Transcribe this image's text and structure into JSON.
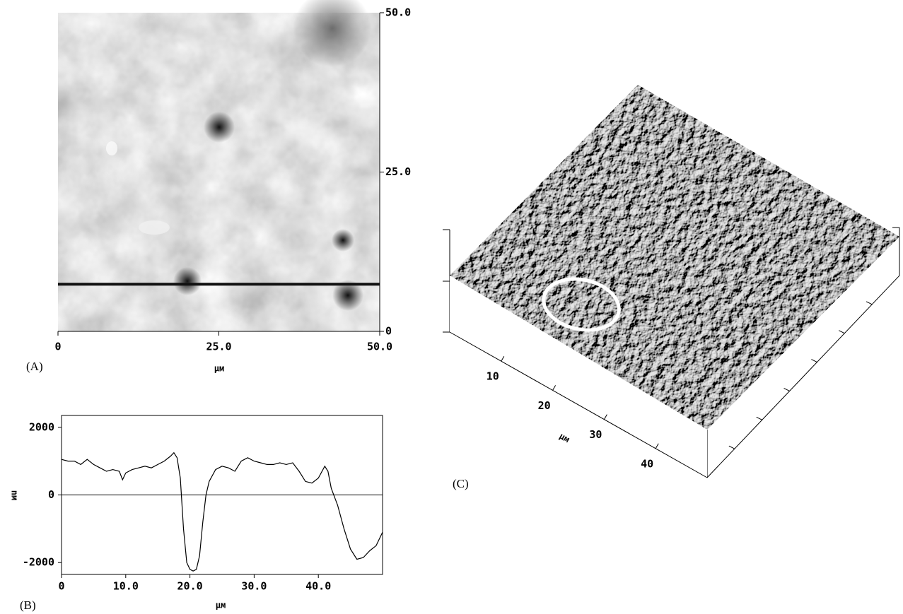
{
  "chart_data": [
    {
      "type": "image",
      "panel_label": "(A)",
      "xlabel": "μм",
      "xlim": [
        0,
        50
      ],
      "ylim": [
        0,
        50
      ],
      "xticks": [
        0,
        {
          "value": 25,
          "label": "25.0"
        },
        {
          "value": 50,
          "label": "50.0"
        }
      ],
      "yticks": [
        0,
        {
          "value": 25,
          "label": "25.0"
        },
        {
          "value": 50,
          "label": "50.0"
        }
      ],
      "section_y": 7.4
    },
    {
      "type": "line",
      "panel_label": "(B)",
      "xlabel": "μм",
      "ylabel": "nм",
      "xlim": [
        0,
        50
      ],
      "ylim": [
        -2350,
        2350
      ],
      "xticks": [
        0,
        {
          "value": 10,
          "label": "10.0"
        },
        {
          "value": 20,
          "label": "20.0"
        },
        {
          "value": 30,
          "label": "30.0"
        },
        {
          "value": 40,
          "label": "40.0"
        }
      ],
      "yticks": [
        -2000,
        0,
        2000
      ],
      "hline": 0,
      "color": "#000000",
      "x": [
        0,
        1,
        2,
        3,
        4,
        5,
        6,
        7,
        8,
        9,
        9.5,
        10,
        11,
        12,
        13,
        14,
        15,
        16,
        17,
        17.5,
        18,
        18.5,
        19,
        19.5,
        20,
        20.5,
        21,
        21.5,
        22,
        22.5,
        23,
        24,
        25,
        26,
        27,
        28,
        29,
        30,
        31,
        32,
        33,
        34,
        35,
        36,
        37,
        38,
        39,
        40,
        41,
        41.5,
        42,
        43,
        44,
        45,
        46,
        47,
        48,
        49,
        50
      ],
      "values": [
        1050,
        1000,
        1000,
        900,
        1050,
        900,
        800,
        700,
        750,
        700,
        450,
        650,
        750,
        800,
        850,
        800,
        900,
        1000,
        1150,
        1250,
        1100,
        500,
        -1000,
        -2000,
        -2200,
        -2250,
        -2200,
        -1800,
        -800,
        0,
        400,
        750,
        850,
        800,
        700,
        1000,
        1100,
        1000,
        950,
        900,
        900,
        950,
        900,
        950,
        700,
        400,
        350,
        500,
        850,
        700,
        200,
        -300,
        -1000,
        -1600,
        -1900,
        -1850,
        -1650,
        -1500,
        -1100
      ]
    },
    {
      "type": "surface3d",
      "panel_label": "(C)",
      "xlabel": "μм",
      "xlim": [
        0,
        50
      ],
      "xticks": [
        10,
        20,
        30,
        40
      ]
    }
  ]
}
